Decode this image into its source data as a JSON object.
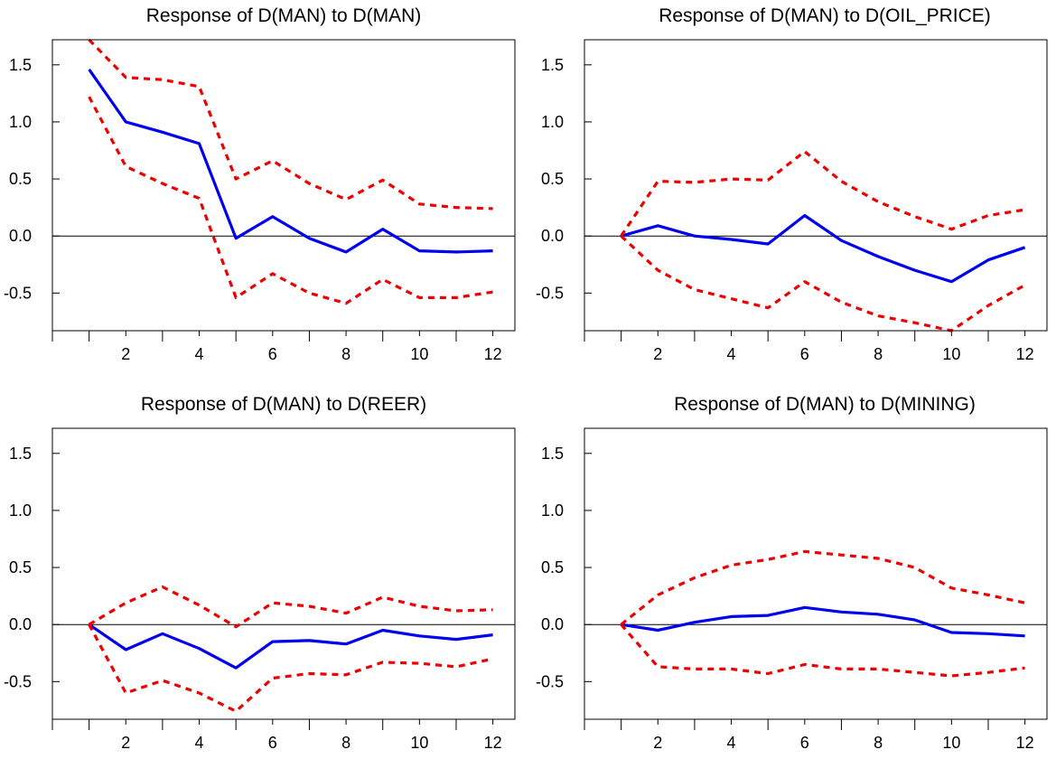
{
  "colors": {
    "response": "#0000ee",
    "bands": "#ee0000",
    "axis": "#000000"
  },
  "chart_data": [
    {
      "type": "line",
      "title": "Response of D(MAN) to D(MAN)",
      "x": [
        1,
        2,
        3,
        4,
        5,
        6,
        7,
        8,
        9,
        10,
        11,
        12
      ],
      "xticks": [
        2,
        4,
        6,
        8,
        10,
        12
      ],
      "yticks": [
        -0.5,
        0.0,
        0.5,
        1.0,
        1.5
      ],
      "ytick_labels": [
        "-0.5",
        "0.0",
        "0.5",
        "1.0",
        "1.5"
      ],
      "xlim": [
        0,
        12.6
      ],
      "ylim": [
        -0.83,
        1.72
      ],
      "zero_line": true,
      "series": [
        {
          "role": "response",
          "values": [
            1.46,
            1.0,
            0.91,
            0.81,
            -0.02,
            0.17,
            -0.02,
            -0.14,
            0.06,
            -0.13,
            -0.14,
            -0.13
          ]
        },
        {
          "role": "upper",
          "values": [
            1.72,
            1.39,
            1.37,
            1.31,
            0.5,
            0.66,
            0.46,
            0.32,
            0.49,
            0.28,
            0.25,
            0.24
          ]
        },
        {
          "role": "lower",
          "values": [
            1.22,
            0.61,
            0.46,
            0.33,
            -0.54,
            -0.33,
            -0.5,
            -0.59,
            -0.38,
            -0.54,
            -0.54,
            -0.49
          ]
        }
      ]
    },
    {
      "type": "line",
      "title": "Response of D(MAN) to D(OIL_PRICE)",
      "x": [
        1,
        2,
        3,
        4,
        5,
        6,
        7,
        8,
        9,
        10,
        11,
        12
      ],
      "xticks": [
        2,
        4,
        6,
        8,
        10,
        12
      ],
      "yticks": [
        -0.5,
        0.0,
        0.5,
        1.0,
        1.5
      ],
      "ytick_labels": [
        "-0.5",
        "0.0",
        "0.5",
        "1.0",
        "1.5"
      ],
      "xlim": [
        0,
        12.6
      ],
      "ylim": [
        -0.83,
        1.72
      ],
      "zero_line": true,
      "series": [
        {
          "role": "response",
          "values": [
            0.0,
            0.09,
            0.0,
            -0.03,
            -0.07,
            0.18,
            -0.04,
            -0.18,
            -0.3,
            -0.4,
            -0.21,
            -0.1
          ]
        },
        {
          "role": "upper",
          "values": [
            0.0,
            0.48,
            0.47,
            0.5,
            0.49,
            0.74,
            0.48,
            0.3,
            0.17,
            0.06,
            0.18,
            0.23
          ]
        },
        {
          "role": "lower",
          "values": [
            0.0,
            -0.3,
            -0.47,
            -0.55,
            -0.63,
            -0.4,
            -0.58,
            -0.7,
            -0.76,
            -0.83,
            -0.61,
            -0.43
          ]
        }
      ]
    },
    {
      "type": "line",
      "title": "Response of D(MAN) to D(REER)",
      "x": [
        1,
        2,
        3,
        4,
        5,
        6,
        7,
        8,
        9,
        10,
        11,
        12
      ],
      "xticks": [
        2,
        4,
        6,
        8,
        10,
        12
      ],
      "yticks": [
        -0.5,
        0.0,
        0.5,
        1.0,
        1.5
      ],
      "ytick_labels": [
        "-0.5",
        "0.0",
        "0.5",
        "1.0",
        "1.5"
      ],
      "xlim": [
        0,
        12.6
      ],
      "ylim": [
        -0.83,
        1.72
      ],
      "zero_line": true,
      "series": [
        {
          "role": "response",
          "values": [
            0.0,
            -0.22,
            -0.08,
            -0.21,
            -0.38,
            -0.15,
            -0.14,
            -0.17,
            -0.05,
            -0.1,
            -0.13,
            -0.09
          ]
        },
        {
          "role": "upper",
          "values": [
            0.0,
            0.19,
            0.33,
            0.17,
            -0.02,
            0.19,
            0.16,
            0.1,
            0.24,
            0.16,
            0.12,
            0.13
          ]
        },
        {
          "role": "lower",
          "values": [
            0.0,
            -0.6,
            -0.49,
            -0.6,
            -0.76,
            -0.47,
            -0.43,
            -0.44,
            -0.33,
            -0.34,
            -0.37,
            -0.3
          ]
        }
      ]
    },
    {
      "type": "line",
      "title": "Response of D(MAN) to D(MINING)",
      "x": [
        1,
        2,
        3,
        4,
        5,
        6,
        7,
        8,
        9,
        10,
        11,
        12
      ],
      "xticks": [
        2,
        4,
        6,
        8,
        10,
        12
      ],
      "yticks": [
        -0.5,
        0.0,
        0.5,
        1.0,
        1.5
      ],
      "ytick_labels": [
        "-0.5",
        "0.0",
        "0.5",
        "1.0",
        "1.5"
      ],
      "xlim": [
        0,
        12.6
      ],
      "ylim": [
        -0.83,
        1.72
      ],
      "zero_line": true,
      "series": [
        {
          "role": "response",
          "values": [
            0.0,
            -0.05,
            0.02,
            0.07,
            0.08,
            0.15,
            0.11,
            0.09,
            0.04,
            -0.07,
            -0.08,
            -0.1
          ]
        },
        {
          "role": "upper",
          "values": [
            0.0,
            0.26,
            0.41,
            0.52,
            0.57,
            0.64,
            0.61,
            0.58,
            0.5,
            0.32,
            0.26,
            0.19
          ]
        },
        {
          "role": "lower",
          "values": [
            0.0,
            -0.37,
            -0.39,
            -0.39,
            -0.43,
            -0.35,
            -0.39,
            -0.39,
            -0.42,
            -0.45,
            -0.42,
            -0.38
          ]
        }
      ]
    }
  ]
}
